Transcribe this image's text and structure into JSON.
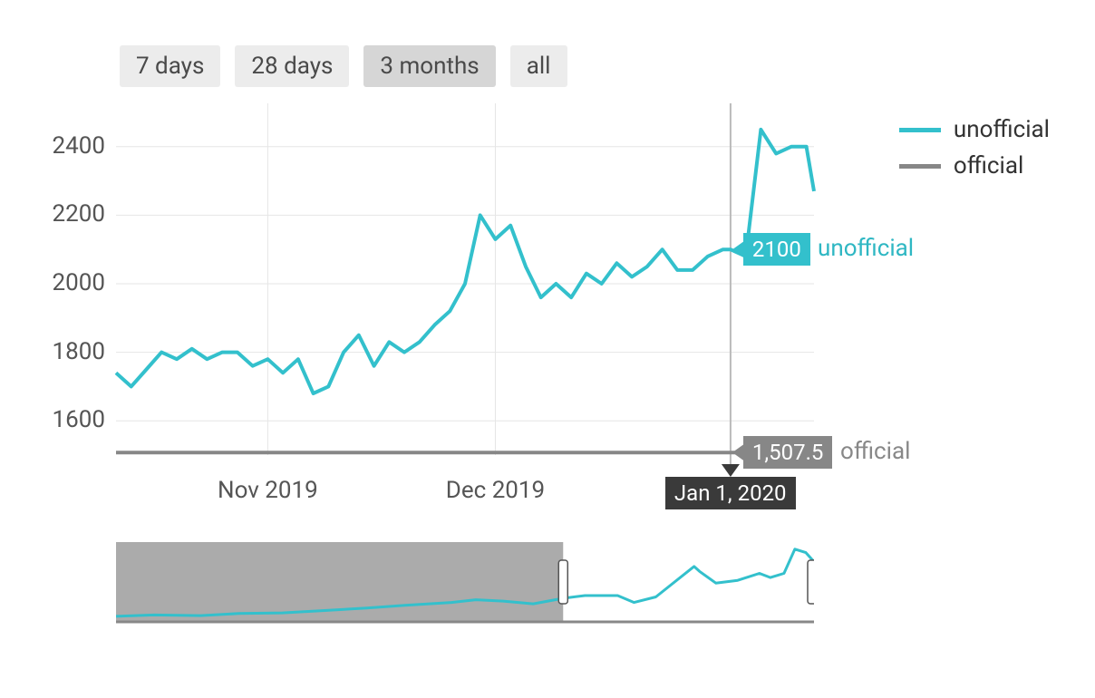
{
  "range_selector": {
    "options": [
      "7 days",
      "28 days",
      "3 months",
      "all"
    ],
    "active_index": 2
  },
  "legend": {
    "items": [
      {
        "label": "unofficial",
        "color": "#33c0cc",
        "stroke_width": 5
      },
      {
        "label": "official",
        "color": "#878787",
        "stroke_width": 5
      }
    ]
  },
  "chart": {
    "type": "line",
    "background_color": "#ffffff",
    "grid_color": "#e6e6e6",
    "axis_color": "#cccccc",
    "x_axis": {
      "domain_start": "2019-10-12",
      "domain_end": "2020-01-12",
      "tick_labels": [
        {
          "x": "2019-11-01",
          "label": "Nov 2019"
        },
        {
          "x": "2019-12-01",
          "label": "Dec 2019"
        }
      ],
      "gridlines": [
        "2019-11-01",
        "2019-12-01",
        "2020-01-01"
      ]
    },
    "y_axis": {
      "min": 1500,
      "max": 2500,
      "ticks": [
        1600,
        1800,
        2000,
        2200,
        2400
      ],
      "label_fontsize": 26,
      "label_color": "#555555"
    },
    "cursor": {
      "date": "2020-01-01",
      "date_label": "Jan 1, 2020",
      "values": {
        "unofficial": {
          "value": 2100,
          "display": "2100"
        },
        "official": {
          "value": 1507.5,
          "display": "1,507.5"
        }
      }
    },
    "series": {
      "official": {
        "color": "#878787",
        "stroke_width": 4,
        "points": [
          {
            "x": "2019-10-12",
            "y": 1507.5
          },
          {
            "x": "2020-01-12",
            "y": 1507.5
          }
        ]
      },
      "unofficial": {
        "color": "#33c0cc",
        "stroke_width": 4,
        "points": [
          {
            "x": "2019-10-12",
            "y": 1740
          },
          {
            "x": "2019-10-14",
            "y": 1700
          },
          {
            "x": "2019-10-16",
            "y": 1750
          },
          {
            "x": "2019-10-18",
            "y": 1800
          },
          {
            "x": "2019-10-20",
            "y": 1780
          },
          {
            "x": "2019-10-22",
            "y": 1810
          },
          {
            "x": "2019-10-24",
            "y": 1780
          },
          {
            "x": "2019-10-26",
            "y": 1800
          },
          {
            "x": "2019-10-28",
            "y": 1800
          },
          {
            "x": "2019-10-30",
            "y": 1760
          },
          {
            "x": "2019-11-01",
            "y": 1780
          },
          {
            "x": "2019-11-03",
            "y": 1740
          },
          {
            "x": "2019-11-05",
            "y": 1780
          },
          {
            "x": "2019-11-07",
            "y": 1680
          },
          {
            "x": "2019-11-09",
            "y": 1700
          },
          {
            "x": "2019-11-11",
            "y": 1800
          },
          {
            "x": "2019-11-13",
            "y": 1850
          },
          {
            "x": "2019-11-15",
            "y": 1760
          },
          {
            "x": "2019-11-17",
            "y": 1830
          },
          {
            "x": "2019-11-19",
            "y": 1800
          },
          {
            "x": "2019-11-21",
            "y": 1830
          },
          {
            "x": "2019-11-23",
            "y": 1880
          },
          {
            "x": "2019-11-25",
            "y": 1920
          },
          {
            "x": "2019-11-27",
            "y": 2000
          },
          {
            "x": "2019-11-29",
            "y": 2200
          },
          {
            "x": "2019-12-01",
            "y": 2130
          },
          {
            "x": "2019-12-03",
            "y": 2170
          },
          {
            "x": "2019-12-05",
            "y": 2050
          },
          {
            "x": "2019-12-07",
            "y": 1960
          },
          {
            "x": "2019-12-09",
            "y": 2000
          },
          {
            "x": "2019-12-11",
            "y": 1960
          },
          {
            "x": "2019-12-13",
            "y": 2030
          },
          {
            "x": "2019-12-15",
            "y": 2000
          },
          {
            "x": "2019-12-17",
            "y": 2060
          },
          {
            "x": "2019-12-19",
            "y": 2020
          },
          {
            "x": "2019-12-21",
            "y": 2050
          },
          {
            "x": "2019-12-23",
            "y": 2100
          },
          {
            "x": "2019-12-25",
            "y": 2040
          },
          {
            "x": "2019-12-27",
            "y": 2040
          },
          {
            "x": "2019-12-29",
            "y": 2080
          },
          {
            "x": "2019-12-31",
            "y": 2100
          },
          {
            "x": "2020-01-01",
            "y": 2100
          },
          {
            "x": "2020-01-03",
            "y": 2080
          },
          {
            "x": "2020-01-05",
            "y": 2450
          },
          {
            "x": "2020-01-07",
            "y": 2380
          },
          {
            "x": "2020-01-09",
            "y": 2400
          },
          {
            "x": "2020-01-11",
            "y": 2400
          },
          {
            "x": "2020-01-12",
            "y": 2270
          }
        ]
      }
    }
  },
  "overview": {
    "background_color": "#f0f0f0",
    "mask_color": "#9c9c9c",
    "axis_color": "#888888",
    "handle_fill": "#ffffff",
    "handle_stroke": "#555555",
    "x_domain_start": "2019-05-01",
    "x_domain_end": "2020-01-12",
    "y_min": 1400,
    "y_max": 2500,
    "selection_start": "2019-10-12",
    "selection_end": "2020-01-12",
    "series": {
      "unofficial": {
        "color": "#33c0cc",
        "stroke_width": 3,
        "points": [
          {
            "x": "2019-05-01",
            "y": 1480
          },
          {
            "x": "2019-05-15",
            "y": 1500
          },
          {
            "x": "2019-06-01",
            "y": 1490
          },
          {
            "x": "2019-06-15",
            "y": 1520
          },
          {
            "x": "2019-07-01",
            "y": 1530
          },
          {
            "x": "2019-07-15",
            "y": 1560
          },
          {
            "x": "2019-08-01",
            "y": 1600
          },
          {
            "x": "2019-08-15",
            "y": 1640
          },
          {
            "x": "2019-09-01",
            "y": 1680
          },
          {
            "x": "2019-09-10",
            "y": 1720
          },
          {
            "x": "2019-09-20",
            "y": 1700
          },
          {
            "x": "2019-10-01",
            "y": 1660
          },
          {
            "x": "2019-10-12",
            "y": 1740
          },
          {
            "x": "2019-10-20",
            "y": 1780
          },
          {
            "x": "2019-11-01",
            "y": 1780
          },
          {
            "x": "2019-11-07",
            "y": 1680
          },
          {
            "x": "2019-11-15",
            "y": 1760
          },
          {
            "x": "2019-11-29",
            "y": 2200
          },
          {
            "x": "2019-12-01",
            "y": 2130
          },
          {
            "x": "2019-12-07",
            "y": 1960
          },
          {
            "x": "2019-12-15",
            "y": 2000
          },
          {
            "x": "2019-12-23",
            "y": 2100
          },
          {
            "x": "2019-12-27",
            "y": 2040
          },
          {
            "x": "2020-01-01",
            "y": 2100
          },
          {
            "x": "2020-01-05",
            "y": 2450
          },
          {
            "x": "2020-01-09",
            "y": 2400
          },
          {
            "x": "2020-01-12",
            "y": 2270
          }
        ]
      }
    }
  }
}
